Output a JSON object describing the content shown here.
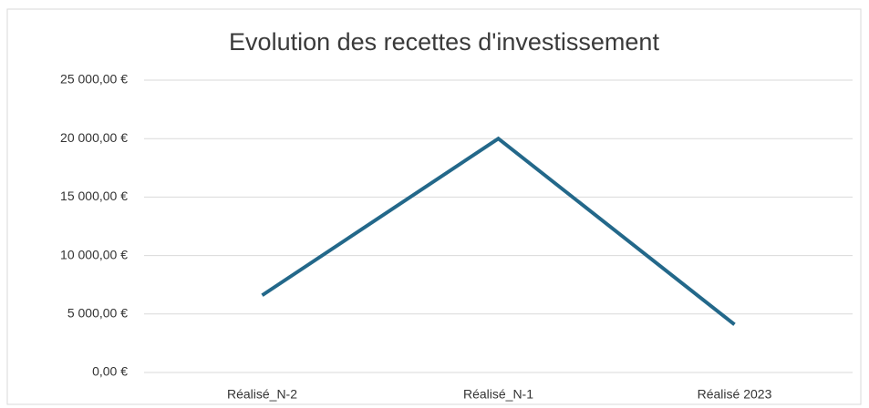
{
  "chart_data": {
    "type": "line",
    "title": "Evolution des recettes d'investissement",
    "categories": [
      "Réalisé_N-2",
      "Réalisé_N-1",
      "Réalisé 2023"
    ],
    "series": [
      {
        "name": "Recettes d'investissement",
        "color": "#23688a",
        "values": [
          6600,
          20000,
          4100
        ]
      }
    ],
    "ylim": [
      0,
      25000
    ],
    "yticks": [
      {
        "value": 0,
        "label": "0,00 €"
      },
      {
        "value": 5000,
        "label": "5 000,00 €"
      },
      {
        "value": 10000,
        "label": "10 000,00 €"
      },
      {
        "value": 15000,
        "label": "15 000,00 €"
      },
      {
        "value": 20000,
        "label": "20 000,00 €"
      },
      {
        "value": 25000,
        "label": "25 000,00 €"
      }
    ],
    "grid": true
  }
}
